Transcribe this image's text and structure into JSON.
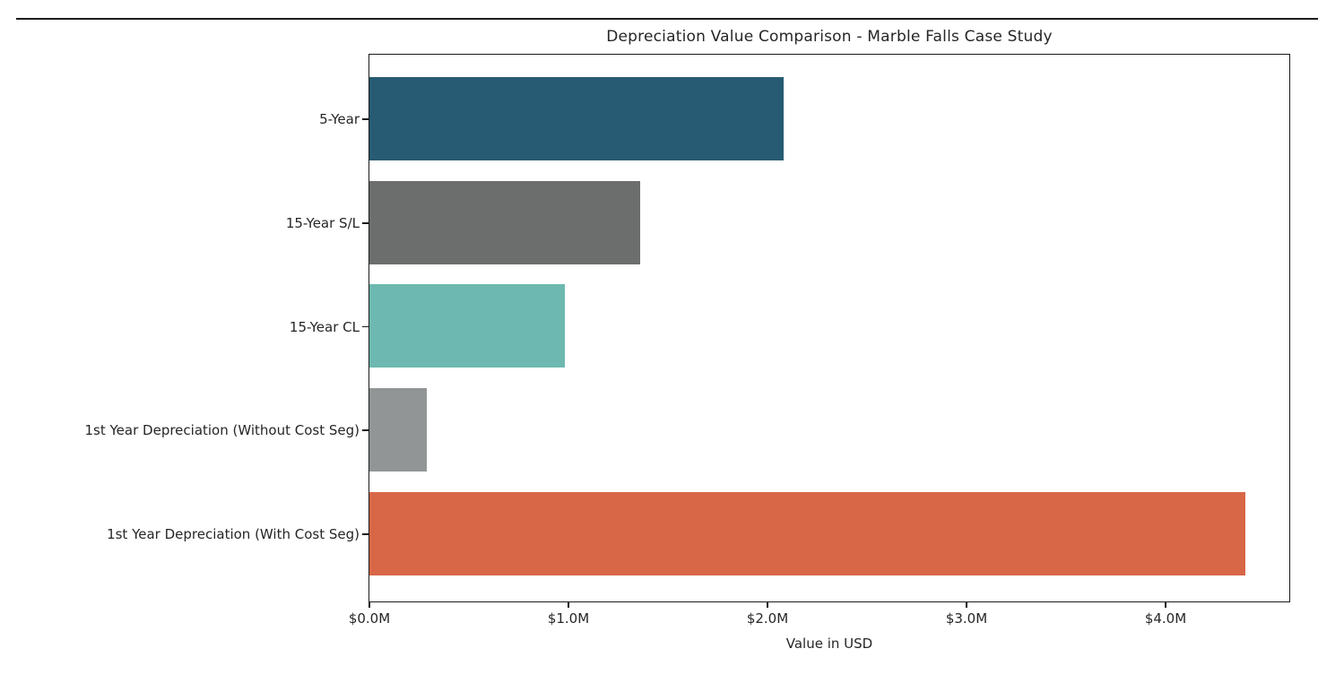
{
  "chart_data": {
    "type": "bar",
    "orientation": "horizontal",
    "title": "Depreciation Value Comparison - Marble Falls Case Study",
    "xlabel": "Value in USD",
    "ylabel": "",
    "categories": [
      "5-Year",
      "15-Year S/L",
      "15-Year CL",
      "1st Year Depreciation (Without Cost Seg)",
      "1st Year Depreciation (With Cost Seg)"
    ],
    "values_million_usd": [
      2.08,
      1.36,
      0.98,
      0.29,
      4.4
    ],
    "bar_colors": [
      "#265b73",
      "#6c6d6d",
      "#6db8b0",
      "#919595",
      "#d76747"
    ],
    "x_ticks": [
      {
        "label": "$0.0M",
        "value": 0
      },
      {
        "label": "$1.0M",
        "value": 1
      },
      {
        "label": "$2.0M",
        "value": 2
      },
      {
        "label": "$3.0M",
        "value": 3
      },
      {
        "label": "$4.0M",
        "value": 4
      }
    ],
    "xlim": [
      0,
      4.63
    ],
    "grid": false,
    "legend": null,
    "spine_color": "#1a1a1a",
    "text_color": "#262626",
    "background_color": "#ffffff"
  }
}
